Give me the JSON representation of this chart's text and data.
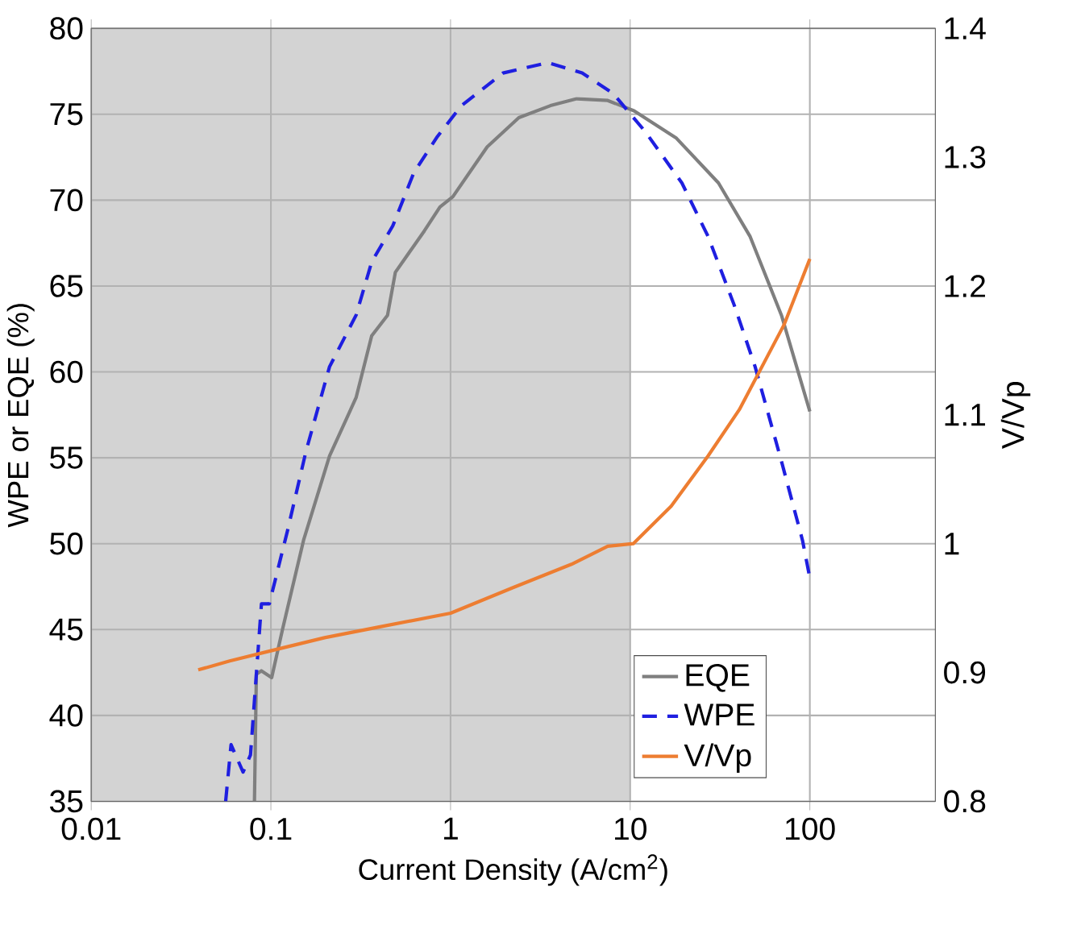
{
  "chart_data": {
    "type": "line",
    "xlabel": "Current Density (A/cm$^{2}$)",
    "ylabel": "WPE or EQE (%)",
    "y2label": "V/Vp",
    "log": "x",
    "grid": true,
    "legend": "bottom right",
    "xlim": [
      0.01,
      500
    ],
    "xticks": [
      0.01,
      0.1,
      1,
      10,
      100
    ],
    "ylim": [
      35,
      80
    ],
    "yticks": [
      35,
      40,
      45,
      50,
      55,
      60,
      65,
      70,
      75,
      80
    ],
    "y2lim": [
      0.8,
      1.4
    ],
    "y2ticks": [
      0.8,
      0.9,
      1,
      1.1,
      1.2,
      1.3,
      1.4
    ],
    "bands": [
      {
        "axis": "x",
        "from": 0.01,
        "to": 10,
        "color": "#d3d3d3"
      }
    ],
    "series": [
      {
        "name": "EQE",
        "color": "#7f7f7f",
        "line_style": "solid",
        "x": [
          0.081,
          0.083,
          0.0885,
          0.101,
          0.116,
          0.152,
          0.212,
          0.298,
          0.364,
          0.446,
          0.493,
          0.714,
          0.873,
          1.03,
          1.6,
          2.4,
          3.6,
          5.04,
          7.5,
          10.5,
          18.1,
          31,
          46.4,
          69.5,
          100
        ],
        "values": [
          35,
          42.4,
          42.6,
          42.2,
          45,
          50.2,
          55.1,
          58.5,
          62.1,
          63.3,
          65.8,
          68.2,
          69.6,
          70.2,
          73.1,
          74.8,
          75.5,
          75.9,
          75.8,
          75.2,
          73.6,
          71.0,
          67.9,
          63.3,
          57.7
        ]
      },
      {
        "name": "WPE",
        "color": "#1f1fe0",
        "line_style": "dashed",
        "x": [
          0.056,
          0.06,
          0.07,
          0.077,
          0.0886,
          0.098,
          0.124,
          0.157,
          0.212,
          0.298,
          0.364,
          0.477,
          0.625,
          0.845,
          1.15,
          1.96,
          3.48,
          5.4,
          8.05,
          12.1,
          19.4,
          27.1,
          37.9,
          49.6,
          69.5,
          91,
          100
        ],
        "values": [
          35,
          38.3,
          36.7,
          37.7,
          46.5,
          46.5,
          50.8,
          55.4,
          60.3,
          63.3,
          66.4,
          68.5,
          71.6,
          73.7,
          75.5,
          77.4,
          78.0,
          77.4,
          76.2,
          74.0,
          71.0,
          67.9,
          63.9,
          60.3,
          54.8,
          50.2,
          48.0
        ]
      },
      {
        "name": "V/Vp",
        "color": "#ed7d31",
        "line_style": "solid",
        "axis": "y2",
        "x": [
          0.0394,
          0.059,
          0.101,
          0.199,
          0.389,
          1.0,
          2.24,
          4.71,
          7.5,
          10.4,
          16.9,
          27.1,
          40.5,
          71.9,
          100
        ],
        "values": [
          0.902,
          0.909,
          0.917,
          0.927,
          0.935,
          0.946,
          0.966,
          0.984,
          0.998,
          1.0,
          1.029,
          1.068,
          1.104,
          1.17,
          1.221
        ]
      }
    ]
  }
}
